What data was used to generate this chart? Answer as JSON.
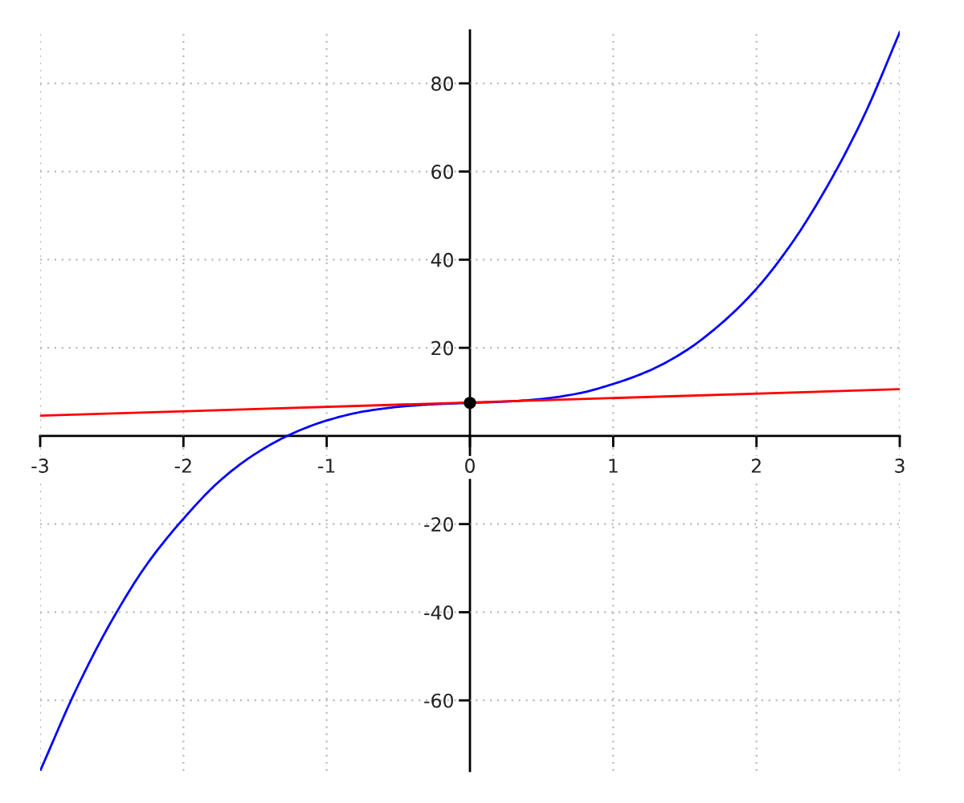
{
  "chart_data": {
    "type": "line",
    "xlim": [
      -3,
      3
    ],
    "ylim": [
      -76,
      92
    ],
    "xticks": [
      -3,
      -2,
      -1,
      0,
      1,
      2,
      3
    ],
    "yticks": [
      -60,
      -40,
      -20,
      20,
      40,
      60,
      80
    ],
    "grid": true,
    "line_style": "solid",
    "series": [
      {
        "color": "#0000ff",
        "x": [
          -3,
          -2.75,
          -2.5,
          -2.25,
          -2,
          -1.75,
          -1.5,
          -1.25,
          -1,
          -0.75,
          -0.5,
          -0.25,
          0,
          0.25,
          0.5,
          0.75,
          1,
          1.25,
          1.5,
          1.75,
          2,
          2.25,
          2.5,
          2.75,
          3
        ],
        "values": [
          -76,
          -57.6,
          -41.9,
          -28.9,
          -18.8,
          -10.3,
          -4.1,
          0.4,
          3.5,
          5.5,
          6.6,
          7.2,
          7.5,
          7.8,
          8.4,
          9.6,
          11.8,
          14.8,
          19.2,
          25.4,
          33.4,
          43.9,
          57,
          72.6,
          91.6
        ]
      },
      {
        "color": "#ff0000",
        "x": [
          -3,
          3
        ],
        "values": [
          4.6,
          10.6
        ]
      },
      {
        "type": "scatter",
        "color": "#000000",
        "marker": "circle",
        "x": [
          0
        ],
        "values": [
          7.5
        ]
      }
    ]
  }
}
